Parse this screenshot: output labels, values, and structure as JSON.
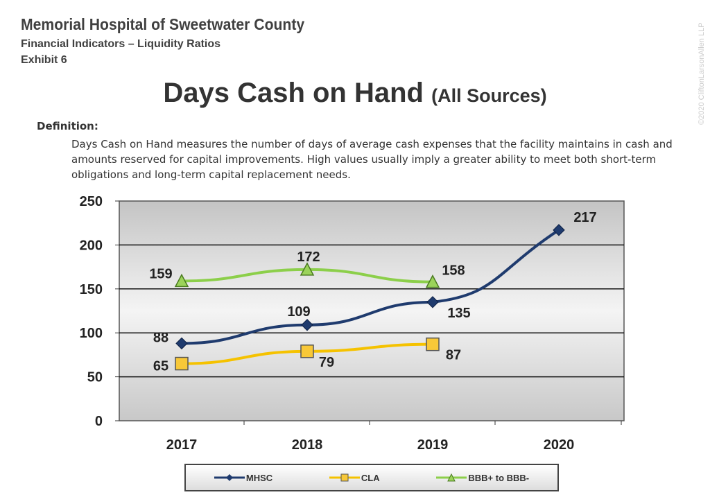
{
  "header": {
    "org": "Memorial Hospital of Sweetwater County",
    "subtitle": "Financial Indicators – Liquidity Ratios",
    "exhibit": "Exhibit 6"
  },
  "watermark": "©2020 CliftonLarsonAllen LLP",
  "definition": {
    "label": "Definition:",
    "text": "Days Cash on Hand measures the number of days of average cash expenses that the facility maintains in cash and amounts reserved for capital improvements. High values usually imply a greater ability to meet both short-term obligations and long-term capital replacement needs."
  },
  "chart_data": {
    "type": "line",
    "title": "Days Cash on Hand",
    "title_suffix": "(All Sources)",
    "categories": [
      "2017",
      "2018",
      "2019",
      "2020"
    ],
    "ylim": [
      0,
      250
    ],
    "yticks": [
      "0",
      "50",
      "100",
      "150",
      "200",
      "250"
    ],
    "grid": true,
    "legend_position": "bottom",
    "series": [
      {
        "name": "MHSC",
        "values": [
          88,
          109,
          135,
          217
        ],
        "color": "#1f3b6e",
        "marker": "diamond"
      },
      {
        "name": "CLA",
        "values": [
          65,
          79,
          87,
          null
        ],
        "color": "#f5c200",
        "marker": "square"
      },
      {
        "name": "BBB+ to BBB-",
        "values": [
          159,
          172,
          158,
          null
        ],
        "color": "#8ccf4a",
        "marker": "triangle"
      }
    ]
  }
}
